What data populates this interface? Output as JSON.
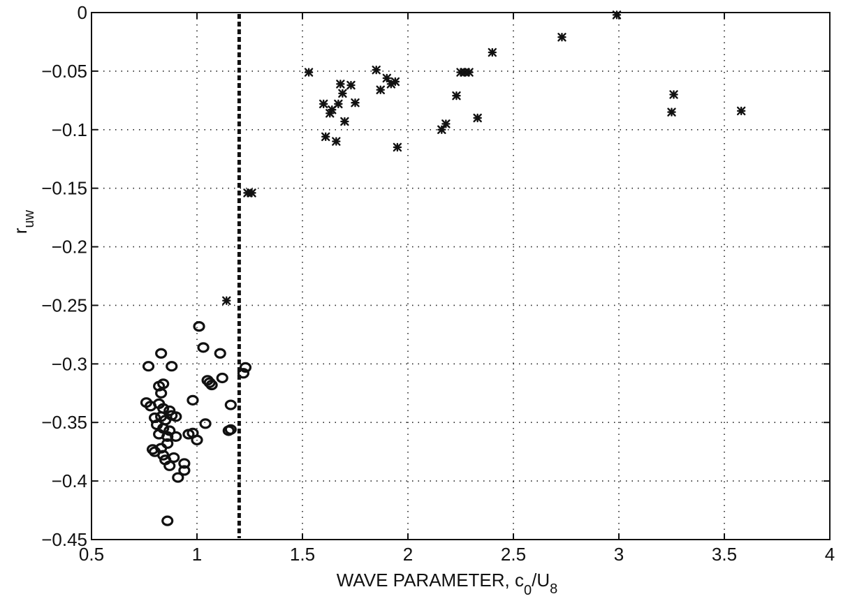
{
  "chart_data": {
    "type": "scatter",
    "title": "",
    "xlabel": "WAVE PARAMETER, c",
    "xlabel_sub1": "0",
    "xlabel_mid": "/U",
    "xlabel_sub2": "8",
    "ylabel": "r",
    "ylabel_sub": "uw",
    "xlim": [
      0.5,
      4
    ],
    "ylim": [
      -0.45,
      0
    ],
    "xticks": [
      0.5,
      1,
      1.5,
      2,
      2.5,
      3,
      3.5,
      4
    ],
    "xtick_labels": [
      "0.5",
      "1",
      "1.5",
      "2",
      "2.5",
      "3",
      "3.5",
      "4"
    ],
    "yticks": [
      0,
      -0.05,
      -0.1,
      -0.15,
      -0.2,
      -0.25,
      -0.3,
      -0.35,
      -0.4,
      -0.45
    ],
    "ytick_labels": [
      "0",
      "−0.05",
      "−0.1",
      "−0.15",
      "−0.2",
      "−0.25",
      "−0.3",
      "−0.35",
      "−0.4",
      "−0.45"
    ],
    "grid": true,
    "reference_line": {
      "x": 1.2,
      "style": "dashed vertical"
    },
    "series": [
      {
        "marker": "circle",
        "points": [
          [
            0.77,
            -0.302
          ],
          [
            0.76,
            -0.333
          ],
          [
            0.78,
            -0.336
          ],
          [
            0.8,
            -0.346
          ],
          [
            0.81,
            -0.352
          ],
          [
            0.79,
            -0.373
          ],
          [
            0.8,
            -0.375
          ],
          [
            0.83,
            -0.372
          ],
          [
            0.82,
            -0.36
          ],
          [
            0.84,
            -0.378
          ],
          [
            0.83,
            -0.291
          ],
          [
            0.82,
            -0.319
          ],
          [
            0.84,
            -0.317
          ],
          [
            0.83,
            -0.325
          ],
          [
            0.82,
            -0.334
          ],
          [
            0.84,
            -0.338
          ],
          [
            0.83,
            -0.345
          ],
          [
            0.85,
            -0.348
          ],
          [
            0.84,
            -0.355
          ],
          [
            0.86,
            -0.362
          ],
          [
            0.87,
            -0.357
          ],
          [
            0.85,
            -0.382
          ],
          [
            0.86,
            -0.368
          ],
          [
            0.87,
            -0.387
          ],
          [
            0.88,
            -0.302
          ],
          [
            0.87,
            -0.34
          ],
          [
            0.88,
            -0.344
          ],
          [
            0.9,
            -0.345
          ],
          [
            0.89,
            -0.38
          ],
          [
            0.9,
            -0.362
          ],
          [
            0.91,
            -0.397
          ],
          [
            0.94,
            -0.385
          ],
          [
            0.94,
            -0.391
          ],
          [
            0.96,
            -0.36
          ],
          [
            0.98,
            -0.359
          ],
          [
            0.98,
            -0.331
          ],
          [
            1.0,
            -0.365
          ],
          [
            1.01,
            -0.268
          ],
          [
            1.03,
            -0.286
          ],
          [
            1.04,
            -0.351
          ],
          [
            1.05,
            -0.314
          ],
          [
            1.06,
            -0.316
          ],
          [
            1.07,
            -0.318
          ],
          [
            1.11,
            -0.291
          ],
          [
            1.12,
            -0.312
          ],
          [
            1.15,
            -0.357
          ],
          [
            1.16,
            -0.335
          ],
          [
            1.16,
            -0.356
          ],
          [
            1.22,
            -0.308
          ],
          [
            1.23,
            -0.303
          ],
          [
            0.86,
            -0.434
          ]
        ]
      },
      {
        "marker": "star",
        "points": [
          [
            1.14,
            -0.246
          ],
          [
            1.24,
            -0.154
          ],
          [
            1.26,
            -0.154
          ],
          [
            1.53,
            -0.051
          ],
          [
            1.6,
            -0.078
          ],
          [
            1.61,
            -0.106
          ],
          [
            1.63,
            -0.086
          ],
          [
            1.64,
            -0.083
          ],
          [
            1.66,
            -0.11
          ],
          [
            1.67,
            -0.078
          ],
          [
            1.68,
            -0.061
          ],
          [
            1.69,
            -0.069
          ],
          [
            1.7,
            -0.093
          ],
          [
            1.73,
            -0.062
          ],
          [
            1.75,
            -0.077
          ],
          [
            1.85,
            -0.049
          ],
          [
            1.87,
            -0.066
          ],
          [
            1.9,
            -0.056
          ],
          [
            1.92,
            -0.061
          ],
          [
            1.94,
            -0.059
          ],
          [
            1.95,
            -0.115
          ],
          [
            2.16,
            -0.1
          ],
          [
            2.18,
            -0.095
          ],
          [
            2.23,
            -0.071
          ],
          [
            2.25,
            -0.051
          ],
          [
            2.27,
            -0.051
          ],
          [
            2.29,
            -0.051
          ],
          [
            2.33,
            -0.09
          ],
          [
            2.4,
            -0.034
          ],
          [
            2.73,
            -0.021
          ],
          [
            2.99,
            -0.002
          ],
          [
            3.25,
            -0.085
          ],
          [
            3.26,
            -0.07
          ],
          [
            3.58,
            -0.084
          ]
        ]
      }
    ]
  }
}
